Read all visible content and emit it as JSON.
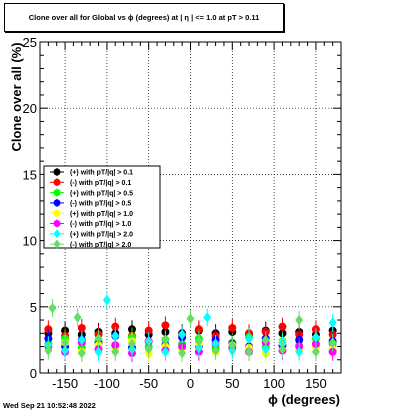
{
  "title": "Clone  over all for Global vs ϕ (degrees) at |  η | <= 1.0 at pT > 0.11",
  "footer_timestamp": "Wed Sep 21 10:52:48 2022",
  "chart_data": {
    "type": "scatter",
    "xlabel": "ϕ (degrees)",
    "ylabel": "Clone  over all (%)",
    "xlim": [
      -180,
      180
    ],
    "ylim": [
      0,
      25
    ],
    "x_ticks": [
      -150,
      -100,
      -50,
      0,
      50,
      100,
      150
    ],
    "y_ticks": [
      0,
      5,
      10,
      15,
      20,
      25
    ],
    "grid": true,
    "legend_position": "middle-left",
    "series": [
      {
        "name": "(+) with pT/|q| > 0.1",
        "color": "#000000",
        "marker": "circle",
        "values": [
          [
            -170,
            3.0
          ],
          [
            -150,
            3.2
          ],
          [
            -130,
            2.9
          ],
          [
            -110,
            3.1
          ],
          [
            -90,
            3.0
          ],
          [
            -70,
            3.3
          ],
          [
            -50,
            2.9
          ],
          [
            -30,
            3.1
          ],
          [
            -10,
            3.0
          ],
          [
            10,
            3.2
          ],
          [
            30,
            3.0
          ],
          [
            50,
            3.1
          ],
          [
            70,
            2.9
          ],
          [
            90,
            3.2
          ],
          [
            110,
            3.0
          ],
          [
            130,
            3.1
          ],
          [
            150,
            2.9
          ],
          [
            170,
            3.2
          ]
        ]
      },
      {
        "name": "(-) with pT/|q| > 0.1",
        "color": "#ff0000",
        "marker": "circle",
        "values": [
          [
            -170,
            3.3
          ],
          [
            -150,
            2.8
          ],
          [
            -130,
            3.4
          ],
          [
            -110,
            2.9
          ],
          [
            -90,
            3.5
          ],
          [
            -70,
            2.8
          ],
          [
            -50,
            3.2
          ],
          [
            -30,
            3.6
          ],
          [
            -10,
            2.9
          ],
          [
            10,
            3.3
          ],
          [
            30,
            2.8
          ],
          [
            50,
            3.4
          ],
          [
            70,
            3.0
          ],
          [
            90,
            3.1
          ],
          [
            110,
            3.5
          ],
          [
            130,
            2.9
          ],
          [
            150,
            3.3
          ],
          [
            170,
            2.9
          ]
        ]
      },
      {
        "name": "(+) with pT/|q| > 0.5",
        "color": "#00ff00",
        "marker": "circle",
        "values": [
          [
            -170,
            2.2
          ],
          [
            -150,
            2.6
          ],
          [
            -130,
            1.9
          ],
          [
            -110,
            2.4
          ],
          [
            -90,
            2.1
          ],
          [
            -70,
            2.7
          ],
          [
            -50,
            2.0
          ],
          [
            -30,
            2.5
          ],
          [
            -10,
            2.2
          ],
          [
            10,
            2.6
          ],
          [
            30,
            1.9
          ],
          [
            50,
            2.3
          ],
          [
            70,
            2.7
          ],
          [
            90,
            2.0
          ],
          [
            110,
            2.4
          ],
          [
            130,
            2.1
          ],
          [
            150,
            2.6
          ],
          [
            170,
            2.2
          ]
        ]
      },
      {
        "name": "(-) with pT/|q| > 0.5",
        "color": "#0000ff",
        "marker": "circle",
        "values": [
          [
            -170,
            2.6
          ],
          [
            -150,
            2.0
          ],
          [
            -130,
            2.5
          ],
          [
            -110,
            2.2
          ],
          [
            -90,
            2.8
          ],
          [
            -70,
            1.9
          ],
          [
            -50,
            2.4
          ],
          [
            -30,
            2.1
          ],
          [
            -10,
            2.7
          ],
          [
            10,
            2.0
          ],
          [
            30,
            2.5
          ],
          [
            50,
            2.2
          ],
          [
            70,
            2.0
          ],
          [
            90,
            2.6
          ],
          [
            110,
            2.1
          ],
          [
            130,
            2.5
          ],
          [
            150,
            2.0
          ],
          [
            170,
            2.4
          ]
        ]
      },
      {
        "name": "(+) with pT/|q| > 1.0",
        "color": "#ffff00",
        "marker": "circle",
        "values": [
          [
            -170,
            1.8
          ],
          [
            -150,
            2.3
          ],
          [
            -130,
            1.6
          ],
          [
            -110,
            2.1
          ],
          [
            -90,
            1.7
          ],
          [
            -70,
            2.4
          ],
          [
            -50,
            1.5
          ],
          [
            -30,
            2.0
          ],
          [
            -10,
            1.8
          ],
          [
            10,
            2.2
          ],
          [
            30,
            1.6
          ],
          [
            50,
            2.1
          ],
          [
            70,
            1.9
          ],
          [
            90,
            1.5
          ],
          [
            110,
            2.3
          ],
          [
            130,
            1.7
          ],
          [
            150,
            2.0
          ],
          [
            170,
            1.8
          ]
        ]
      },
      {
        "name": "(-) with pT/|q| > 1.0",
        "color": "#ff00ff",
        "marker": "circle",
        "values": [
          [
            -170,
            2.0
          ],
          [
            -150,
            1.6
          ],
          [
            -130,
            2.3
          ],
          [
            -110,
            1.8
          ],
          [
            -90,
            2.1
          ],
          [
            -70,
            1.5
          ],
          [
            -50,
            2.4
          ],
          [
            -30,
            1.7
          ],
          [
            -10,
            2.0
          ],
          [
            10,
            1.6
          ],
          [
            30,
            2.2
          ],
          [
            50,
            1.9
          ],
          [
            70,
            1.6
          ],
          [
            90,
            2.3
          ],
          [
            110,
            1.7
          ],
          [
            130,
            2.0
          ],
          [
            150,
            2.2
          ],
          [
            170,
            1.6
          ]
        ]
      },
      {
        "name": "(+) with pT/|q| > 2.0",
        "color": "#00ffff",
        "marker": "diamond",
        "values": [
          [
            -170,
            2.1
          ],
          [
            -150,
            1.7
          ],
          [
            -130,
            2.5
          ],
          [
            -110,
            1.6
          ],
          [
            -100,
            5.5
          ],
          [
            -90,
            2.8
          ],
          [
            -70,
            1.8
          ],
          [
            -50,
            2.4
          ],
          [
            -30,
            1.6
          ],
          [
            -10,
            2.9
          ],
          [
            10,
            1.9
          ],
          [
            20,
            4.2
          ],
          [
            30,
            2.2
          ],
          [
            50,
            1.7
          ],
          [
            70,
            2.6
          ],
          [
            90,
            1.8
          ],
          [
            110,
            2.3
          ],
          [
            130,
            1.6
          ],
          [
            150,
            2.7
          ],
          [
            170,
            3.8
          ]
        ]
      },
      {
        "name": "(-) with pT/|q| > 2.0",
        "color": "#66dd66",
        "marker": "diamond",
        "values": [
          [
            -170,
            1.7
          ],
          [
            -165,
            4.9
          ],
          [
            -150,
            2.3
          ],
          [
            -135,
            4.2
          ],
          [
            -130,
            1.5
          ],
          [
            -110,
            2.6
          ],
          [
            -90,
            1.6
          ],
          [
            -70,
            2.2
          ],
          [
            -50,
            1.8
          ],
          [
            -30,
            2.5
          ],
          [
            -10,
            1.5
          ],
          [
            0,
            4.1
          ],
          [
            10,
            2.4
          ],
          [
            30,
            1.7
          ],
          [
            50,
            2.1
          ],
          [
            70,
            1.6
          ],
          [
            90,
            2.5
          ],
          [
            110,
            1.8
          ],
          [
            130,
            4.0
          ],
          [
            150,
            1.6
          ],
          [
            170,
            2.3
          ]
        ]
      }
    ]
  }
}
